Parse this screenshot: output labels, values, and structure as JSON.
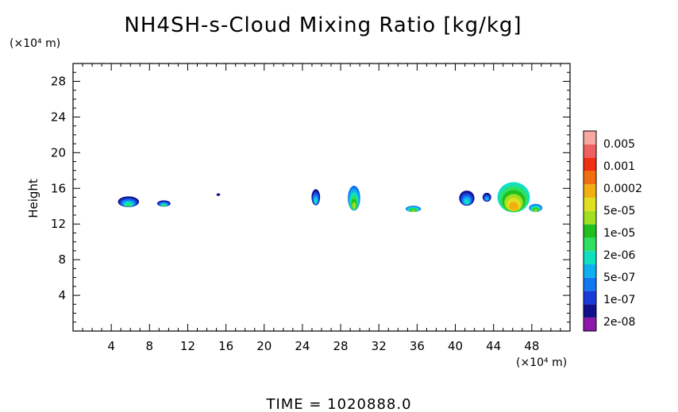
{
  "chart_data": {
    "type": "heatmap",
    "title": "NH4SH-s-Cloud Mixing Ratio [kg/kg]",
    "ylabel": "Height",
    "xlabel": "",
    "x_unit": "(×10⁴ m)",
    "y_unit": "(×10⁴ m)",
    "xlim": [
      0,
      52
    ],
    "ylim": [
      0,
      30
    ],
    "xticks": [
      "4",
      "8",
      "12",
      "16",
      "20",
      "24",
      "28",
      "32",
      "36",
      "40",
      "44",
      "48"
    ],
    "yticks": [
      "4",
      "8",
      "12",
      "16",
      "20",
      "24",
      "28"
    ],
    "time_label": "TIME  =  1020888.0",
    "colorbar": {
      "labels": [
        "0.005",
        "0.001",
        "0.0002",
        "5e-05",
        "1e-05",
        "2e-06",
        "5e-07",
        "1e-07",
        "2e-08"
      ],
      "colors": [
        "#8b18a8",
        "#10108a",
        "#1a3ad8",
        "#1078f0",
        "#10b0f0",
        "#10e0c0",
        "#30e060",
        "#20c020",
        "#a0e020",
        "#e0e020",
        "#f0b010",
        "#f07010",
        "#f03010",
        "#f06060",
        "#f8a8a0"
      ]
    },
    "clouds": [
      {
        "x": 5.8,
        "y": 14.5,
        "w": 2.2,
        "h": 1.2,
        "level": "1e-05"
      },
      {
        "x": 9.5,
        "y": 14.3,
        "w": 1.4,
        "h": 0.7,
        "level": "1e-05"
      },
      {
        "x": 15.2,
        "y": 15.3,
        "w": 0.4,
        "h": 0.3,
        "level": "2e-08"
      },
      {
        "x": 25.4,
        "y": 15.0,
        "w": 0.9,
        "h": 1.8,
        "level": "2e-06"
      },
      {
        "x": 29.4,
        "y": 14.9,
        "w": 1.3,
        "h": 2.8,
        "level": "5e-05"
      },
      {
        "x": 35.6,
        "y": 13.7,
        "w": 1.6,
        "h": 0.7,
        "level": "5e-05"
      },
      {
        "x": 41.2,
        "y": 14.9,
        "w": 1.6,
        "h": 1.7,
        "level": "2e-06"
      },
      {
        "x": 43.3,
        "y": 15.0,
        "w": 0.9,
        "h": 1.0,
        "level": "5e-07"
      },
      {
        "x": 46.1,
        "y": 15.0,
        "w": 3.4,
        "h": 3.4,
        "level": "0.0002"
      },
      {
        "x": 48.4,
        "y": 13.8,
        "w": 1.4,
        "h": 0.9,
        "level": "5e-05"
      }
    ]
  }
}
